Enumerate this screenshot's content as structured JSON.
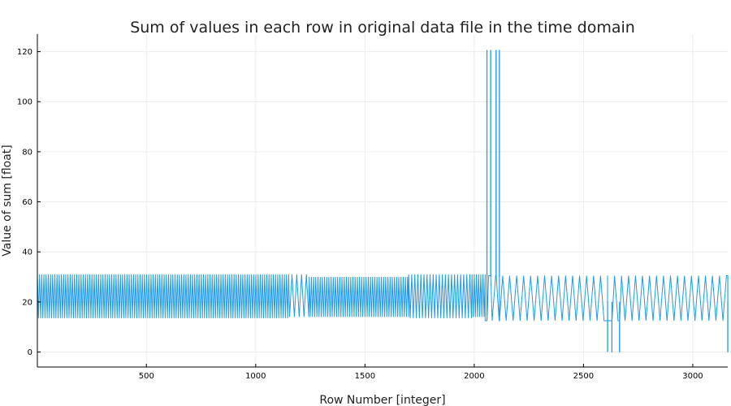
{
  "chart_data": {
    "type": "line",
    "title": "Sum of values in each row in original data file in the time domain",
    "xlabel": "Row Number [integer]",
    "ylabel": "Value of sum [float]",
    "xlim": [
      1,
      3160
    ],
    "ylim": [
      -6,
      127
    ],
    "x_ticks": [
      500,
      1000,
      1500,
      2000,
      2500,
      3000
    ],
    "y_ticks": [
      0,
      20,
      40,
      60,
      80,
      100,
      120
    ],
    "grid": true,
    "legend": "none",
    "series_color": "#1f9be8",
    "series": [
      {
        "segments": [
          {
            "x_start": 1,
            "x_end": 1155,
            "period": 10,
            "low": 13.5,
            "high": 31
          },
          {
            "x_start": 1155,
            "x_end": 1245,
            "period": 22,
            "low": 14,
            "high": 31
          },
          {
            "x_start": 1245,
            "x_end": 1700,
            "period": 10,
            "low": 14,
            "high": 30
          },
          {
            "x_start": 1700,
            "x_end": 1990,
            "period": 14,
            "low": 13.5,
            "high": 31
          },
          {
            "x_start": 1990,
            "x_end": 2050,
            "period": 10,
            "low": 14,
            "high": 31
          },
          {
            "x_start": 2050,
            "x_end": 3160,
            "period": 32,
            "low": 12.5,
            "high": 30.5
          }
        ],
        "spikes": [
          {
            "x": 2058,
            "y": 120.5
          },
          {
            "x": 2075,
            "y": 120.5
          },
          {
            "x": 2100,
            "y": 120.5
          },
          {
            "x": 2115,
            "y": 120.5
          }
        ],
        "drops": [
          {
            "x": 2610,
            "y": 0
          },
          {
            "x": 2630,
            "y": 0
          },
          {
            "x": 2665,
            "y": 0
          },
          {
            "x": 3160,
            "y": 0
          }
        ]
      }
    ]
  }
}
